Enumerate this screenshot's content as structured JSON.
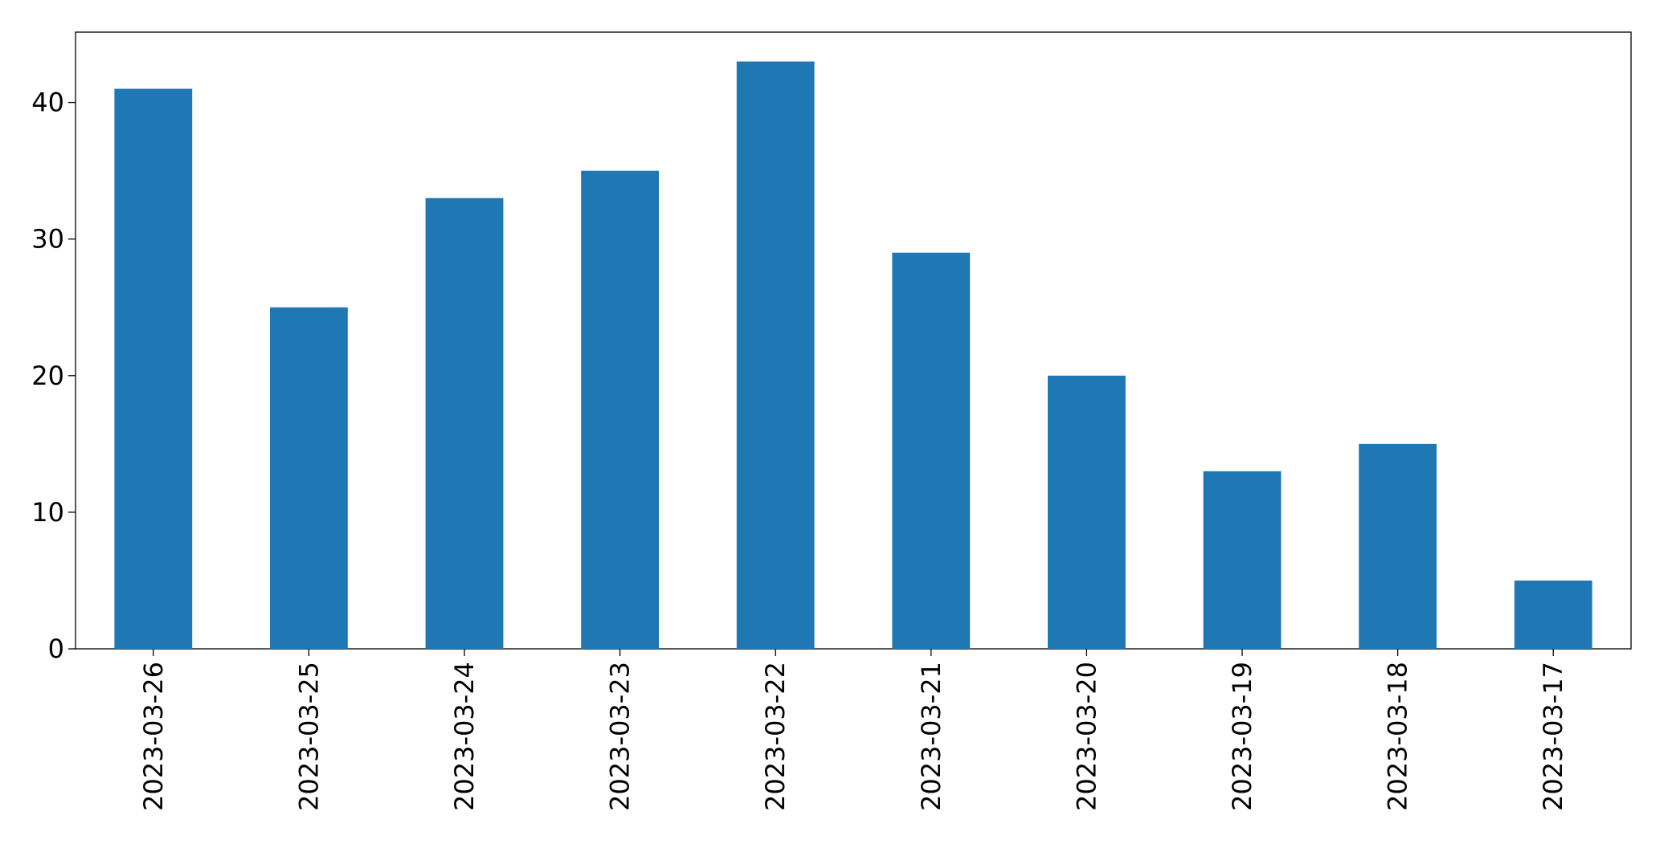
{
  "chart_data": {
    "type": "bar",
    "categories": [
      "2023-03-26",
      "2023-03-25",
      "2023-03-24",
      "2023-03-23",
      "2023-03-22",
      "2023-03-21",
      "2023-03-20",
      "2023-03-19",
      "2023-03-18",
      "2023-03-17"
    ],
    "values": [
      41,
      25,
      33,
      35,
      43,
      29,
      20,
      13,
      15,
      5
    ],
    "color": "#1f77b4",
    "ylim": [
      0,
      45.15
    ],
    "yticks": [
      0,
      10,
      20,
      30,
      40
    ],
    "grid": false
  }
}
